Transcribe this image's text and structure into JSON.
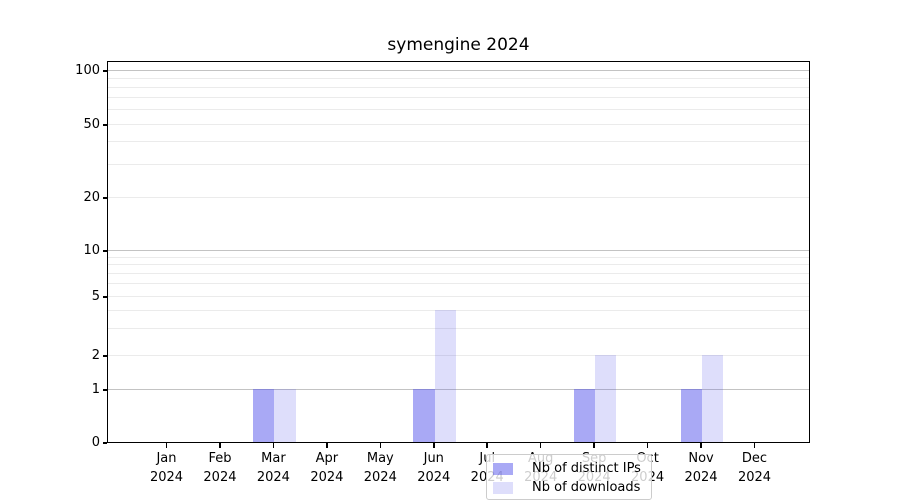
{
  "chart_data": {
    "type": "bar",
    "title": "symengine 2024",
    "categories": [
      "Jan",
      "Feb",
      "Mar",
      "Apr",
      "May",
      "Jun",
      "Jul",
      "Aug",
      "Sep",
      "Oct",
      "Nov",
      "Dec"
    ],
    "category_year": "2024",
    "series": [
      {
        "name": "Nb of distinct IPs",
        "color": "rgba(75,75,235,0.48)",
        "values": [
          0,
          0,
          1,
          0,
          0,
          1,
          0,
          0,
          1,
          0,
          1,
          0
        ]
      },
      {
        "name": "Nb of downloads",
        "color": "rgba(75,75,235,0.185)",
        "values": [
          0,
          0,
          1,
          0,
          0,
          4,
          0,
          0,
          2,
          0,
          2,
          0
        ]
      }
    ],
    "xlabel": "",
    "ylabel": "",
    "yticks": [
      0,
      1,
      2,
      5,
      10,
      20,
      50,
      100
    ],
    "major_grid_values": [
      1,
      10,
      100
    ],
    "minor_grid_values": [
      2,
      3,
      4,
      5,
      6,
      7,
      8,
      9,
      20,
      30,
      40,
      50,
      60,
      70,
      80,
      90
    ],
    "scale": "log above 1, linear 0-1",
    "ylim": [
      0,
      115
    ],
    "grid": true,
    "legend_position": "lower center"
  }
}
